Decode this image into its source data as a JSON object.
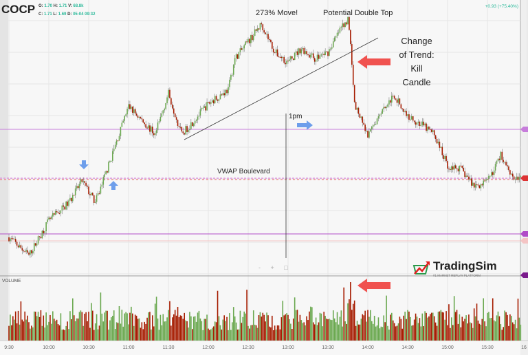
{
  "header": {
    "symbol": "COCP",
    "open": "1.70",
    "high": "1.71",
    "volume": "68.8k",
    "close": "1.71",
    "low": "1.69",
    "date": "05-04 09:32",
    "change": "+0.93 (+75.40%)",
    "labels": {
      "o": "O:",
      "h": "H:",
      "v": "V:",
      "c": "C:",
      "l": "L:",
      "d": "D:"
    }
  },
  "annotations": {
    "move": "273% Move!",
    "double_top": "Potential Double Top",
    "change1": "Change",
    "change2": "of Trend:",
    "change3": "Kill",
    "change4": "Candle",
    "one_pm": "1pm",
    "vwap": "VWAP Boulevard"
  },
  "volume_label": "VOLUME",
  "zoom_controls": "- + □",
  "logo": {
    "name": "TradingSim",
    "tagline": "#1 MARKET REPLAY PLATFORM"
  },
  "colors": {
    "up": "#6aa84f",
    "down": "#a61c00",
    "vwap": "#d86fd8",
    "level": "#c77ddb",
    "arrow_red": "#f0524f",
    "arrow_blue": "#6d9eeb"
  },
  "chart_data": {
    "type": "candlestick",
    "title": "",
    "xlabel": "",
    "ylabel": "",
    "x_ticks": [
      "9:30",
      "10:00",
      "10:30",
      "11:00",
      "11:30",
      "12:00",
      "12:30",
      "13:00",
      "13:30",
      "14:00",
      "14:30",
      "15:00",
      "15:30",
      "16"
    ],
    "price_path": {
      "time": [
        "9:30",
        "9:45",
        "10:00",
        "10:15",
        "10:25",
        "10:35",
        "10:45",
        "11:00",
        "11:10",
        "11:20",
        "11:30",
        "11:40",
        "12:00",
        "12:15",
        "12:20",
        "12:30",
        "12:40",
        "12:50",
        "13:00",
        "13:10",
        "13:20",
        "13:30",
        "13:40",
        "13:45",
        "13:48",
        "13:50",
        "14:00",
        "14:10",
        "14:20",
        "14:30",
        "14:40",
        "14:50",
        "15:00",
        "15:10",
        "15:20",
        "15:30",
        "15:40",
        "15:50"
      ],
      "price": [
        1.7,
        1.56,
        1.83,
        1.97,
        2.14,
        1.97,
        2.26,
        2.72,
        2.61,
        2.5,
        2.82,
        2.5,
        2.74,
        2.85,
        3.09,
        3.22,
        3.36,
        3.14,
        3.06,
        3.17,
        3.09,
        3.14,
        3.33,
        3.4,
        3.06,
        2.74,
        2.48,
        2.69,
        2.8,
        2.64,
        2.58,
        2.5,
        2.26,
        2.23,
        2.1,
        2.13,
        2.34,
        2.16
      ]
    },
    "vwap": 2.15,
    "ylim": [
      1.45,
      3.45
    ],
    "volume_spike_time": "13:47",
    "grid": true
  }
}
